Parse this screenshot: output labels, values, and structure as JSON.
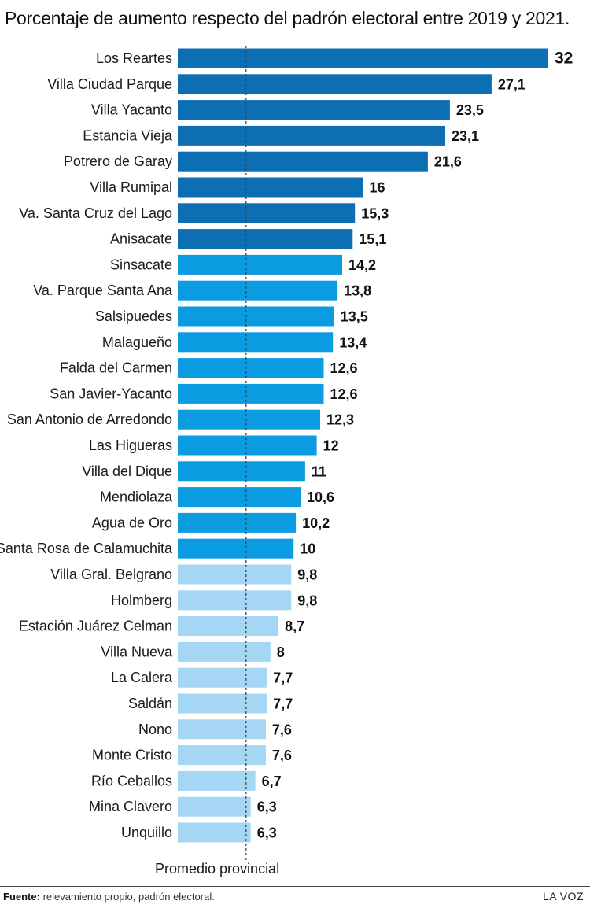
{
  "title": "Porcentaje de aumento respecto del padrón electoral entre 2019 y 2021.",
  "reference_line_label": "Promedio provincial",
  "source_label": "Fuente:",
  "source_text": "relevamiento propio, padrón electoral.",
  "brand": "LA VOZ",
  "colors": {
    "dark": "#0d6fb3",
    "mid": "#0b9be0",
    "light": "#a5d6f4",
    "reference_line": "#444444"
  },
  "chart_data": {
    "type": "bar",
    "orientation": "horizontal",
    "title": "Porcentaje de aumento respecto del padrón electoral entre 2019 y 2021.",
    "xlabel": "",
    "ylabel": "",
    "xlim": [
      0,
      32
    ],
    "reference_line": {
      "label": "Promedio provincial",
      "value": 5.9
    },
    "categories": [
      "Los Reartes",
      "Villa Ciudad Parque",
      "Villa Yacanto",
      "Estancia Vieja",
      "Potrero de Garay",
      "Villa Rumipal",
      "Va. Santa Cruz del Lago",
      "Anisacate",
      "Sinsacate",
      "Va. Parque Santa Ana",
      "Salsipuedes",
      "Malagueño",
      "Falda del Carmen",
      "San Javier-Yacanto",
      "San Antonio de Arredondo",
      "Las Higueras",
      "Villa del Dique",
      "Mendiolaza",
      "Agua de Oro",
      "Santa Rosa de Calamuchita",
      "Villa Gral. Belgrano",
      "Holmberg",
      "Estación Juárez Celman",
      "Villa Nueva",
      "La Calera",
      "Saldán",
      "Nono",
      "Monte Cristo",
      "Río Ceballos",
      "Mina Clavero",
      "Unquillo"
    ],
    "values": [
      32,
      27.1,
      23.5,
      23.1,
      21.6,
      16,
      15.3,
      15.1,
      14.2,
      13.8,
      13.5,
      13.4,
      12.6,
      12.6,
      12.3,
      12,
      11,
      10.6,
      10.2,
      10,
      9.8,
      9.8,
      8.7,
      8,
      7.7,
      7.7,
      7.6,
      7.6,
      6.7,
      6.3,
      6.3
    ],
    "value_labels": [
      "32",
      "27,1",
      "23,5",
      "23,1",
      "21,6",
      "16",
      "15,3",
      "15,1",
      "14,2",
      "13,8",
      "13,5",
      "13,4",
      "12,6",
      "12,6",
      "12,3",
      "12",
      "11",
      "10,6",
      "10,2",
      "10",
      "9,8",
      "9,8",
      "8,7",
      "8",
      "7,7",
      "7,7",
      "7,6",
      "7,6",
      "6,7",
      "6,3",
      "6,3"
    ],
    "color_groups": [
      "dark",
      "dark",
      "dark",
      "dark",
      "dark",
      "dark",
      "dark",
      "dark",
      "mid",
      "mid",
      "mid",
      "mid",
      "mid",
      "mid",
      "mid",
      "mid",
      "mid",
      "mid",
      "mid",
      "mid",
      "light",
      "light",
      "light",
      "light",
      "light",
      "light",
      "light",
      "light",
      "light",
      "light",
      "light"
    ]
  }
}
